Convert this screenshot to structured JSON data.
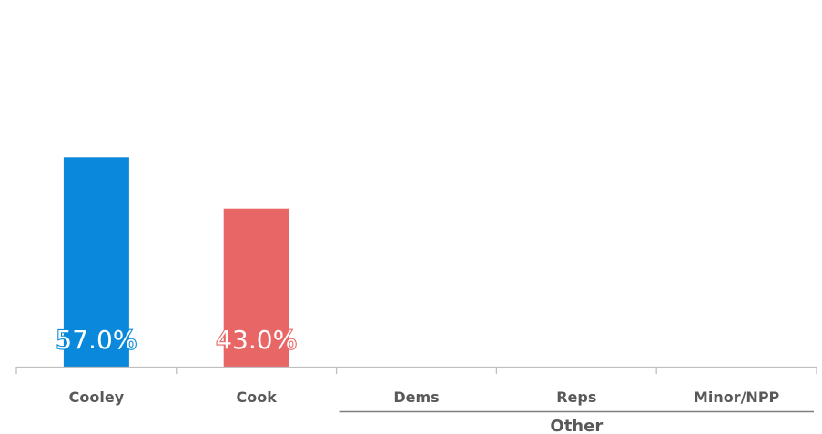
{
  "chart_data": {
    "type": "bar",
    "categories": [
      "Cooley",
      "Cook",
      "Dems",
      "Reps",
      "Minor/NPP"
    ],
    "values": [
      57.0,
      43.0,
      null,
      null,
      null
    ],
    "data_labels": [
      "57.0%",
      "43.0%",
      "",
      "",
      ""
    ],
    "colors": [
      "#0a89dc",
      "#e86666",
      "#0a89dc",
      "#e86666",
      "#a0a0a0"
    ],
    "category_groups": [
      {
        "label": "Other",
        "categories": [
          "Dems",
          "Reps",
          "Minor/NPP"
        ]
      }
    ],
    "ylim": [
      0,
      100
    ],
    "grid": false,
    "legend": "none",
    "title": "",
    "xlabel": "",
    "ylabel": ""
  }
}
